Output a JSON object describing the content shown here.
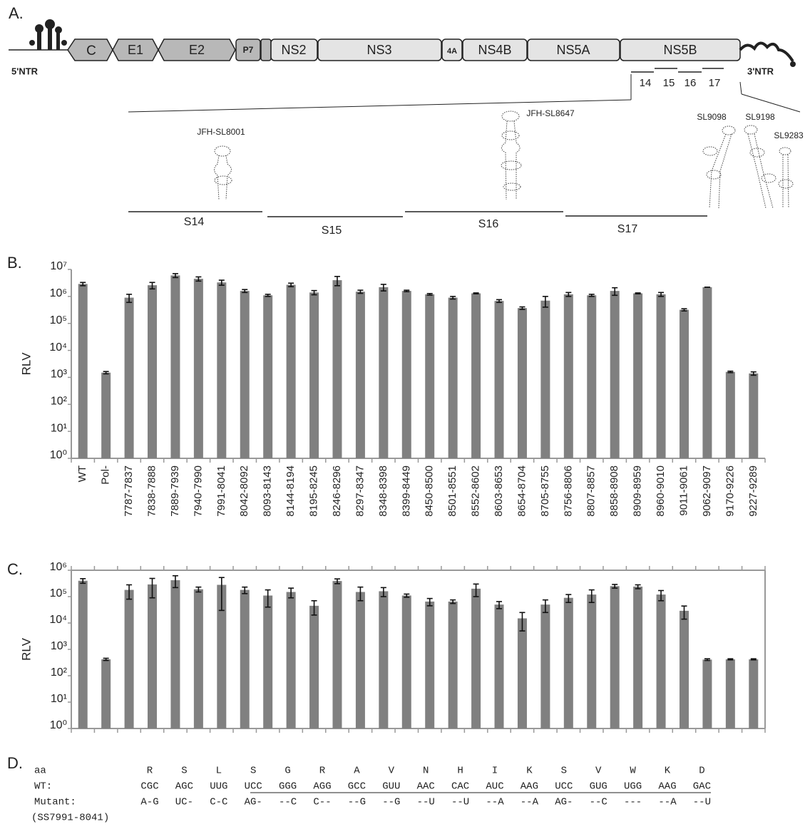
{
  "panel_a": {
    "label": "A.",
    "genes": [
      "C",
      "E1",
      "E2",
      "P7",
      "NS2",
      "NS3",
      "4A",
      "NS4B",
      "NS5A",
      "NS5B"
    ],
    "ntr5": "5'NTR",
    "ntr3": "3'NTR",
    "fragments": [
      "14",
      "15",
      "16",
      "17"
    ],
    "structures": [
      "JFH-SL8001",
      "JFH-SL8647",
      "SL9098",
      "SL9198",
      "SL9283"
    ],
    "segments": [
      "S14",
      "S15",
      "S16",
      "S17"
    ]
  },
  "chart_data": [
    {
      "type": "bar",
      "panel_label": "B.",
      "y_label": "RLV",
      "log_scale": true,
      "color": "#808080",
      "categories": [
        "WT",
        "Pol-",
        "7787-7837",
        "7838-7888",
        "7889-7939",
        "7940-7990",
        "7991-8041",
        "8042-8092",
        "8093-8143",
        "8144-8194",
        "8195-8245",
        "8246-8296",
        "8297-8347",
        "8348-8398",
        "8399-8449",
        "8450-8500",
        "8501-8551",
        "8552-8602",
        "8603-8653",
        "8654-8704",
        "8705-8755",
        "8756-8806",
        "8807-8857",
        "8858-8908",
        "8909-8959",
        "8960-9010",
        "9011-9061",
        "9062-9097",
        "9170-9226",
        "9227-9289"
      ],
      "values": [
        2900000,
        1500,
        900000,
        2600000,
        6000000,
        4500000,
        3300000,
        1600000,
        1100000,
        2700000,
        1400000,
        4000000,
        1500000,
        2200000,
        1600000,
        1200000,
        900000,
        1300000,
        680000,
        370000,
        700000,
        1200000,
        1100000,
        1600000,
        1300000,
        1200000,
        320000,
        2200000,
        1600,
        1400
      ],
      "errors": [
        400000,
        150,
        300000,
        700000,
        1000000,
        800000,
        700000,
        200000,
        100000,
        400000,
        250000,
        1500000,
        200000,
        600000,
        100000,
        80000,
        100000,
        50000,
        80000,
        40000,
        300000,
        200000,
        100000,
        500000,
        50000,
        200000,
        30000,
        900,
        100,
        200
      ],
      "ylim": [
        1,
        10000000
      ],
      "yticks": [
        {
          "value": 1,
          "label": "10⁰"
        },
        {
          "value": 10,
          "label": "10¹"
        },
        {
          "value": 100,
          "label": "10²"
        },
        {
          "value": 1000,
          "label": "10³"
        },
        {
          "value": 10000,
          "label": "10⁴"
        },
        {
          "value": 100000,
          "label": "10⁵"
        },
        {
          "value": 1000000,
          "label": "10⁶"
        },
        {
          "value": 10000000,
          "label": "10⁷"
        }
      ]
    },
    {
      "type": "bar",
      "panel_label": "C.",
      "y_label": "RLV",
      "log_scale": true,
      "color": "#808080",
      "values": [
        400000,
        420,
        180000,
        290000,
        420000,
        190000,
        280000,
        180000,
        110000,
        150000,
        45000,
        390000,
        150000,
        160000,
        110000,
        65000,
        65000,
        200000,
        50000,
        15000,
        50000,
        90000,
        120000,
        250000,
        240000,
        120000,
        29000,
        410,
        420,
        420
      ],
      "errors": [
        80000,
        40,
        100000,
        200000,
        200000,
        40000,
        250000,
        50000,
        70000,
        60000,
        25000,
        80000,
        80000,
        60000,
        15000,
        20000,
        10000,
        100000,
        15000,
        10000,
        25000,
        30000,
        60000,
        40000,
        40000,
        50000,
        15000,
        30,
        20,
        20
      ],
      "ylim": [
        1,
        1000000
      ],
      "yticks": [
        {
          "value": 1,
          "label": "10⁰"
        },
        {
          "value": 10,
          "label": "10¹"
        },
        {
          "value": 100,
          "label": "10²"
        },
        {
          "value": 1000,
          "label": "10³"
        },
        {
          "value": 10000,
          "label": "10⁴"
        },
        {
          "value": 100000,
          "label": "10⁵"
        },
        {
          "value": 1000000,
          "label": "10⁶"
        }
      ]
    }
  ],
  "panel_d": {
    "label": "D.",
    "rows": [
      {
        "name": "aa",
        "cells": [
          "R",
          "S",
          "L",
          "S",
          "G",
          "R",
          "A",
          "V",
          "N",
          "H",
          "I",
          "K",
          "S",
          "V",
          "W",
          "K",
          "D"
        ]
      },
      {
        "name": "WT:",
        "cells": [
          "CGC",
          "AGC",
          "UUG",
          "UCC",
          "GGG",
          "AGG",
          "GCC",
          "GUU",
          "AAC",
          "CAC",
          "AUC",
          "AAG",
          "UCC",
          "GUG",
          "UGG",
          "AAG",
          "GAC"
        ]
      },
      {
        "name": "Mutant:",
        "cells": [
          "A-G",
          "UC-",
          "C-C",
          "AG-",
          "--C",
          "C--",
          "--G",
          "--G",
          "--U",
          "--U",
          "--A",
          "--A",
          "AG-",
          "--C",
          "---",
          "--A",
          "--U"
        ]
      }
    ],
    "note": "(SS7991-8041)"
  }
}
